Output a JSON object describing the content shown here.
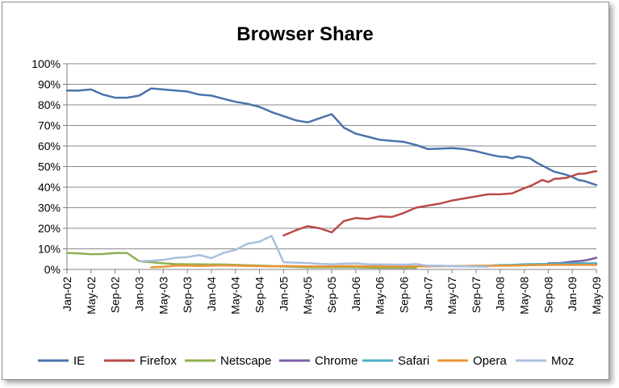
{
  "chart_data": {
    "type": "line",
    "title": "Browser Share",
    "xlabel": "",
    "ylabel": "",
    "ylim": [
      0,
      100
    ],
    "yticks": [
      "0%",
      "10%",
      "20%",
      "30%",
      "40%",
      "50%",
      "60%",
      "70%",
      "80%",
      "90%",
      "100%"
    ],
    "xticks": [
      "Jan-02",
      "May-02",
      "Sep-02",
      "Jan-03",
      "May-03",
      "Sep-03",
      "Jan-04",
      "May-04",
      "Sep-04",
      "Jan-05",
      "May-05",
      "Sep-05",
      "Jan-06",
      "May-06",
      "Sep-06",
      "Jan-07",
      "May-07",
      "Sep-07",
      "Jan-08",
      "May-08",
      "Sep-08",
      "Jan-09",
      "May-09"
    ],
    "x_start": "Jan-02",
    "x_end": "May-09",
    "grid": "horizontal",
    "legend_position": "bottom",
    "series": [
      {
        "name": "IE",
        "color": "#4a72ac",
        "points": [
          [
            "Jan-02",
            87
          ],
          [
            "Mar-02",
            87
          ],
          [
            "May-02",
            87.5
          ],
          [
            "Jul-02",
            85
          ],
          [
            "Sep-02",
            83.5
          ],
          [
            "Nov-02",
            83.5
          ],
          [
            "Jan-03",
            84.5
          ],
          [
            "Mar-03",
            88
          ],
          [
            "May-03",
            87.5
          ],
          [
            "Jul-03",
            87
          ],
          [
            "Sep-03",
            86.5
          ],
          [
            "Nov-03",
            85
          ],
          [
            "Jan-04",
            84.5
          ],
          [
            "Mar-04",
            83
          ],
          [
            "May-04",
            81.5
          ],
          [
            "Jul-04",
            80.5
          ],
          [
            "Sep-04",
            79
          ],
          [
            "Nov-04",
            76.5
          ],
          [
            "Jan-05",
            74.5
          ],
          [
            "Mar-05",
            72.5
          ],
          [
            "May-05",
            71.5
          ],
          [
            "Jul-05",
            73.5
          ],
          [
            "Sep-05",
            75.5
          ],
          [
            "Nov-05",
            69
          ],
          [
            "Jan-06",
            66
          ],
          [
            "Mar-06",
            64.5
          ],
          [
            "May-06",
            63
          ],
          [
            "Jul-06",
            62.5
          ],
          [
            "Sep-06",
            62
          ],
          [
            "Nov-06",
            60.5
          ],
          [
            "Jan-07",
            58.5
          ],
          [
            "Mar-07",
            58.7
          ],
          [
            "May-07",
            59
          ],
          [
            "Jul-07",
            58.5
          ],
          [
            "Sep-07",
            57.5
          ],
          [
            "Nov-07",
            56
          ],
          [
            "Jan-08",
            54.8
          ],
          [
            "Feb-08",
            54.7
          ],
          [
            "Mar-08",
            54
          ],
          [
            "Apr-08",
            55
          ],
          [
            "May-08",
            54.5
          ],
          [
            "Jun-08",
            54
          ],
          [
            "Jul-08",
            52
          ],
          [
            "Aug-08",
            50.5
          ],
          [
            "Sep-08",
            49
          ],
          [
            "Oct-08",
            47.5
          ],
          [
            "Nov-08",
            46.8
          ],
          [
            "Dec-08",
            46
          ],
          [
            "Jan-09",
            45
          ],
          [
            "Feb-09",
            43.5
          ],
          [
            "Mar-09",
            43
          ],
          [
            "Apr-09",
            42
          ],
          [
            "May-09",
            41
          ]
        ]
      },
      {
        "name": "Firefox",
        "color": "#b94a48",
        "points": [
          [
            "Jan-05",
            16.5
          ],
          [
            "Mar-05",
            19
          ],
          [
            "May-05",
            21
          ],
          [
            "Jul-05",
            20
          ],
          [
            "Sep-05",
            18
          ],
          [
            "Nov-05",
            23.5
          ],
          [
            "Jan-06",
            25
          ],
          [
            "Mar-06",
            24.5
          ],
          [
            "May-06",
            25.8
          ],
          [
            "Jul-06",
            25.5
          ],
          [
            "Sep-06",
            27.5
          ],
          [
            "Nov-06",
            30
          ],
          [
            "Jan-07",
            31
          ],
          [
            "Mar-07",
            32
          ],
          [
            "May-07",
            33.5
          ],
          [
            "Jul-07",
            34.5
          ],
          [
            "Sep-07",
            35.5
          ],
          [
            "Nov-07",
            36.5
          ],
          [
            "Jan-08",
            36.5
          ],
          [
            "Mar-08",
            37
          ],
          [
            "May-08",
            39.5
          ],
          [
            "Jun-08",
            40.5
          ],
          [
            "Jul-08",
            42
          ],
          [
            "Aug-08",
            43.5
          ],
          [
            "Sep-08",
            42.5
          ],
          [
            "Oct-08",
            44
          ],
          [
            "Nov-08",
            44.2
          ],
          [
            "Dec-08",
            44.5
          ],
          [
            "Jan-09",
            45.5
          ],
          [
            "Feb-09",
            46.5
          ],
          [
            "Mar-09",
            46.5
          ],
          [
            "Apr-09",
            47.2
          ],
          [
            "May-09",
            47.8
          ]
        ]
      },
      {
        "name": "Netscape",
        "color": "#8db053",
        "points": [
          [
            "Jan-02",
            8
          ],
          [
            "Mar-02",
            7.8
          ],
          [
            "May-02",
            7.4
          ],
          [
            "Jul-02",
            7.5
          ],
          [
            "Sep-02",
            8
          ],
          [
            "Nov-02",
            8
          ],
          [
            "Jan-03",
            4
          ],
          [
            "Mar-03",
            3.5
          ],
          [
            "May-03",
            3
          ],
          [
            "Jul-03",
            2.6
          ],
          [
            "Sep-03",
            2.5
          ],
          [
            "Nov-03",
            2.5
          ],
          [
            "Jan-04",
            2.4
          ],
          [
            "Mar-04",
            2.4
          ],
          [
            "May-04",
            2.2
          ],
          [
            "Jul-04",
            2
          ],
          [
            "Sep-04",
            1.9
          ],
          [
            "Nov-04",
            1.7
          ],
          [
            "Jan-05",
            1.4
          ],
          [
            "Mar-05",
            1.2
          ],
          [
            "May-05",
            1
          ],
          [
            "Jul-05",
            1
          ],
          [
            "Sep-05",
            1
          ],
          [
            "Nov-05",
            1
          ],
          [
            "Jan-06",
            1
          ],
          [
            "Mar-06",
            0.9
          ],
          [
            "May-06",
            0.8
          ],
          [
            "Jul-06",
            0.8
          ],
          [
            "Sep-06",
            0.8
          ],
          [
            "Nov-06",
            0.8
          ]
        ]
      },
      {
        "name": "Chrome",
        "color": "#7b5ea7",
        "points": [
          [
            "Sep-08",
            3
          ],
          [
            "Oct-08",
            3
          ],
          [
            "Nov-08",
            3.1
          ],
          [
            "Dec-08",
            3.4
          ],
          [
            "Jan-09",
            3.8
          ],
          [
            "Feb-09",
            4
          ],
          [
            "Mar-09",
            4.3
          ],
          [
            "Apr-09",
            4.9
          ],
          [
            "May-09",
            5.7
          ]
        ]
      },
      {
        "name": "Safari",
        "color": "#4bacc6",
        "points": [
          [
            "Jan-07",
            1.6
          ],
          [
            "Mar-07",
            1.6
          ],
          [
            "May-07",
            1.7
          ],
          [
            "Jul-07",
            1.6
          ],
          [
            "Sep-07",
            1.7
          ],
          [
            "Nov-07",
            1.8
          ],
          [
            "Jan-08",
            2.1
          ],
          [
            "Mar-08",
            2.2
          ],
          [
            "May-08",
            2.5
          ],
          [
            "Jul-08",
            2.6
          ],
          [
            "Sep-08",
            2.7
          ],
          [
            "Nov-08",
            2.8
          ],
          [
            "Jan-09",
            3
          ],
          [
            "Mar-09",
            3
          ],
          [
            "May-09",
            3
          ]
        ]
      },
      {
        "name": "Opera",
        "color": "#e8953a",
        "points": [
          [
            "Mar-03",
            1
          ],
          [
            "May-03",
            1.3
          ],
          [
            "Jul-03",
            1.8
          ],
          [
            "Sep-03",
            1.9
          ],
          [
            "Nov-03",
            1.7
          ],
          [
            "Jan-04",
            1.8
          ],
          [
            "Mar-04",
            2
          ],
          [
            "May-04",
            1.8
          ],
          [
            "Jul-04",
            1.7
          ],
          [
            "Sep-04",
            1.6
          ],
          [
            "Nov-04",
            1.5
          ],
          [
            "Jan-05",
            1.7
          ],
          [
            "Mar-05",
            1.6
          ],
          [
            "May-05",
            1.5
          ],
          [
            "Jul-05",
            1.5
          ],
          [
            "Sep-05",
            1.5
          ],
          [
            "Nov-05",
            1.6
          ],
          [
            "Jan-06",
            1.6
          ],
          [
            "Mar-06",
            1.5
          ],
          [
            "May-06",
            1.5
          ],
          [
            "Jul-06",
            1.5
          ],
          [
            "Sep-06",
            1.5
          ],
          [
            "Nov-06",
            1.5
          ],
          [
            "Jan-07",
            1.5
          ],
          [
            "Mar-07",
            1.6
          ],
          [
            "May-07",
            1.6
          ],
          [
            "Jul-07",
            1.7
          ],
          [
            "Sep-07",
            1.8
          ],
          [
            "Nov-07",
            1.8
          ],
          [
            "Jan-08",
            1.8
          ],
          [
            "Mar-08",
            1.9
          ],
          [
            "May-08",
            2
          ],
          [
            "Jul-08",
            2.1
          ],
          [
            "Sep-08",
            2.2
          ],
          [
            "Nov-08",
            2.2
          ],
          [
            "Jan-09",
            2.2
          ],
          [
            "Mar-09",
            2.2
          ],
          [
            "May-09",
            2.2
          ]
        ]
      },
      {
        "name": "Moz",
        "color": "#a9bfe0",
        "points": [
          [
            "Jan-03",
            4
          ],
          [
            "Mar-03",
            4.2
          ],
          [
            "May-03",
            4.6
          ],
          [
            "Jul-03",
            5.6
          ],
          [
            "Sep-03",
            6
          ],
          [
            "Nov-03",
            7
          ],
          [
            "Jan-04",
            5.5
          ],
          [
            "Mar-04",
            8
          ],
          [
            "May-04",
            9.5
          ],
          [
            "Jul-04",
            12.5
          ],
          [
            "Sep-04",
            13.5
          ],
          [
            "Nov-04",
            16.3
          ],
          [
            "Dec-04",
            10
          ],
          [
            "Jan-05",
            3.5
          ],
          [
            "Mar-05",
            3.3
          ],
          [
            "May-05",
            3.1
          ],
          [
            "Jul-05",
            2.7
          ],
          [
            "Sep-05",
            2.5
          ],
          [
            "Nov-05",
            2.8
          ],
          [
            "Jan-06",
            3
          ],
          [
            "Mar-06",
            2.5
          ],
          [
            "May-06",
            2.4
          ],
          [
            "Jul-06",
            2.4
          ],
          [
            "Sep-06",
            2.3
          ],
          [
            "Nov-06",
            2.6
          ],
          [
            "Jan-07",
            1.8
          ],
          [
            "Mar-07",
            1.8
          ],
          [
            "May-07",
            1.6
          ],
          [
            "Jul-07",
            1.5
          ],
          [
            "Sep-07",
            1.4
          ],
          [
            "Nov-07",
            1.3
          ]
        ]
      }
    ]
  }
}
